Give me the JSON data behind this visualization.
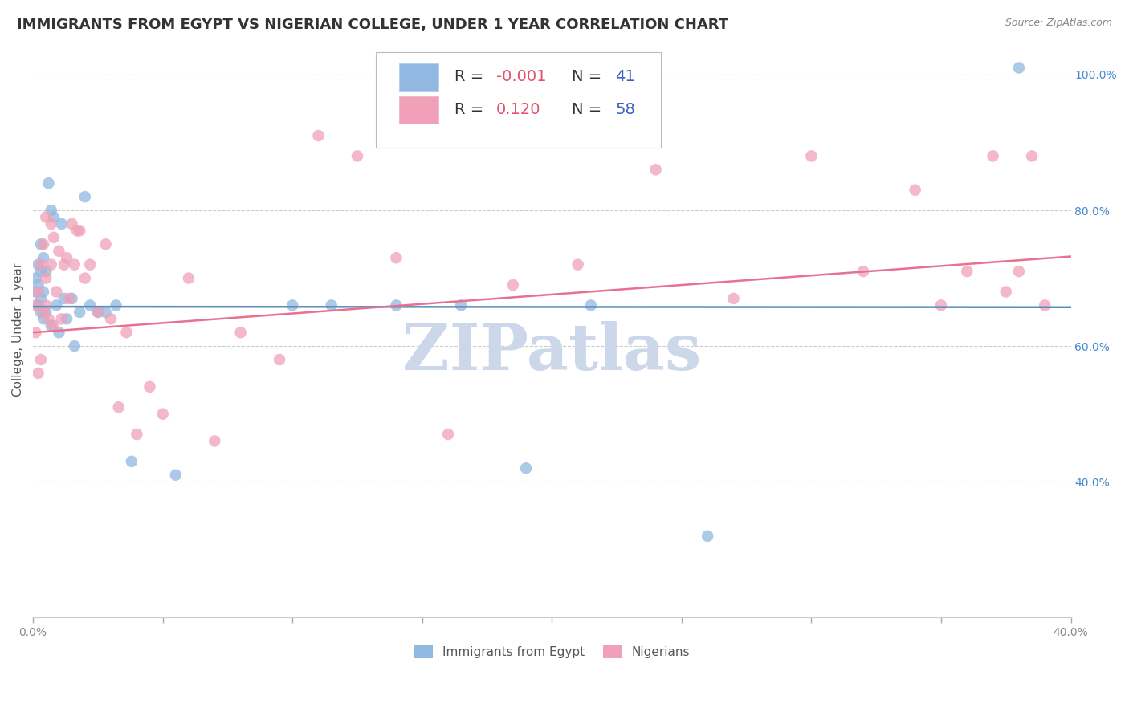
{
  "title": "IMMIGRANTS FROM EGYPT VS NIGERIAN COLLEGE, UNDER 1 YEAR CORRELATION CHART",
  "source": "Source: ZipAtlas.com",
  "ylabel": "College, Under 1 year",
  "x_min": 0.0,
  "x_max": 0.4,
  "y_min": 0.2,
  "y_max": 1.05,
  "grid_color": "#cccccc",
  "background_color": "#ffffff",
  "watermark": "ZIPatlas",
  "watermark_color": "#ccd8ea",
  "egypt_color": "#90b8e0",
  "nigeria_color": "#f0a0b8",
  "egypt_line_color": "#5b8dc0",
  "nigeria_line_color": "#e87090",
  "right_axis_color": "#4488cc",
  "egypt_x": [
    0.001,
    0.001,
    0.002,
    0.002,
    0.002,
    0.003,
    0.003,
    0.003,
    0.003,
    0.004,
    0.004,
    0.004,
    0.005,
    0.005,
    0.006,
    0.007,
    0.007,
    0.008,
    0.009,
    0.01,
    0.011,
    0.012,
    0.013,
    0.015,
    0.016,
    0.018,
    0.02,
    0.022,
    0.025,
    0.028,
    0.032,
    0.038,
    0.055,
    0.1,
    0.115,
    0.14,
    0.165,
    0.19,
    0.215,
    0.26,
    0.38
  ],
  "egypt_y": [
    0.68,
    0.7,
    0.72,
    0.66,
    0.69,
    0.75,
    0.71,
    0.67,
    0.65,
    0.73,
    0.68,
    0.64,
    0.71,
    0.65,
    0.84,
    0.8,
    0.63,
    0.79,
    0.66,
    0.62,
    0.78,
    0.67,
    0.64,
    0.67,
    0.6,
    0.65,
    0.82,
    0.66,
    0.65,
    0.65,
    0.66,
    0.43,
    0.41,
    0.66,
    0.66,
    0.66,
    0.66,
    0.42,
    0.66,
    0.32,
    1.01
  ],
  "nigeria_x": [
    0.001,
    0.001,
    0.002,
    0.002,
    0.003,
    0.003,
    0.004,
    0.004,
    0.005,
    0.005,
    0.005,
    0.006,
    0.007,
    0.007,
    0.008,
    0.008,
    0.009,
    0.01,
    0.011,
    0.012,
    0.013,
    0.014,
    0.015,
    0.016,
    0.017,
    0.018,
    0.02,
    0.022,
    0.025,
    0.028,
    0.03,
    0.033,
    0.036,
    0.04,
    0.045,
    0.05,
    0.06,
    0.07,
    0.08,
    0.095,
    0.11,
    0.125,
    0.14,
    0.16,
    0.185,
    0.21,
    0.24,
    0.27,
    0.3,
    0.32,
    0.34,
    0.35,
    0.36,
    0.37,
    0.375,
    0.38,
    0.385,
    0.39
  ],
  "nigeria_y": [
    0.66,
    0.62,
    0.68,
    0.56,
    0.72,
    0.58,
    0.75,
    0.65,
    0.79,
    0.66,
    0.7,
    0.64,
    0.78,
    0.72,
    0.63,
    0.76,
    0.68,
    0.74,
    0.64,
    0.72,
    0.73,
    0.67,
    0.78,
    0.72,
    0.77,
    0.77,
    0.7,
    0.72,
    0.65,
    0.75,
    0.64,
    0.51,
    0.62,
    0.47,
    0.54,
    0.5,
    0.7,
    0.46,
    0.62,
    0.58,
    0.91,
    0.88,
    0.73,
    0.47,
    0.69,
    0.72,
    0.86,
    0.67,
    0.88,
    0.71,
    0.83,
    0.66,
    0.71,
    0.88,
    0.68,
    0.71,
    0.88,
    0.66
  ],
  "legend_r1": "R = -0.001",
  "legend_n1": "N = 41",
  "legend_r2": "R =  0.120",
  "legend_n2": "N = 58",
  "legend_r_color": "#e05070",
  "legend_n_color": "#4060c0",
  "title_fontsize": 13,
  "axis_label_fontsize": 11,
  "tick_fontsize": 10,
  "legend_fontsize": 14
}
